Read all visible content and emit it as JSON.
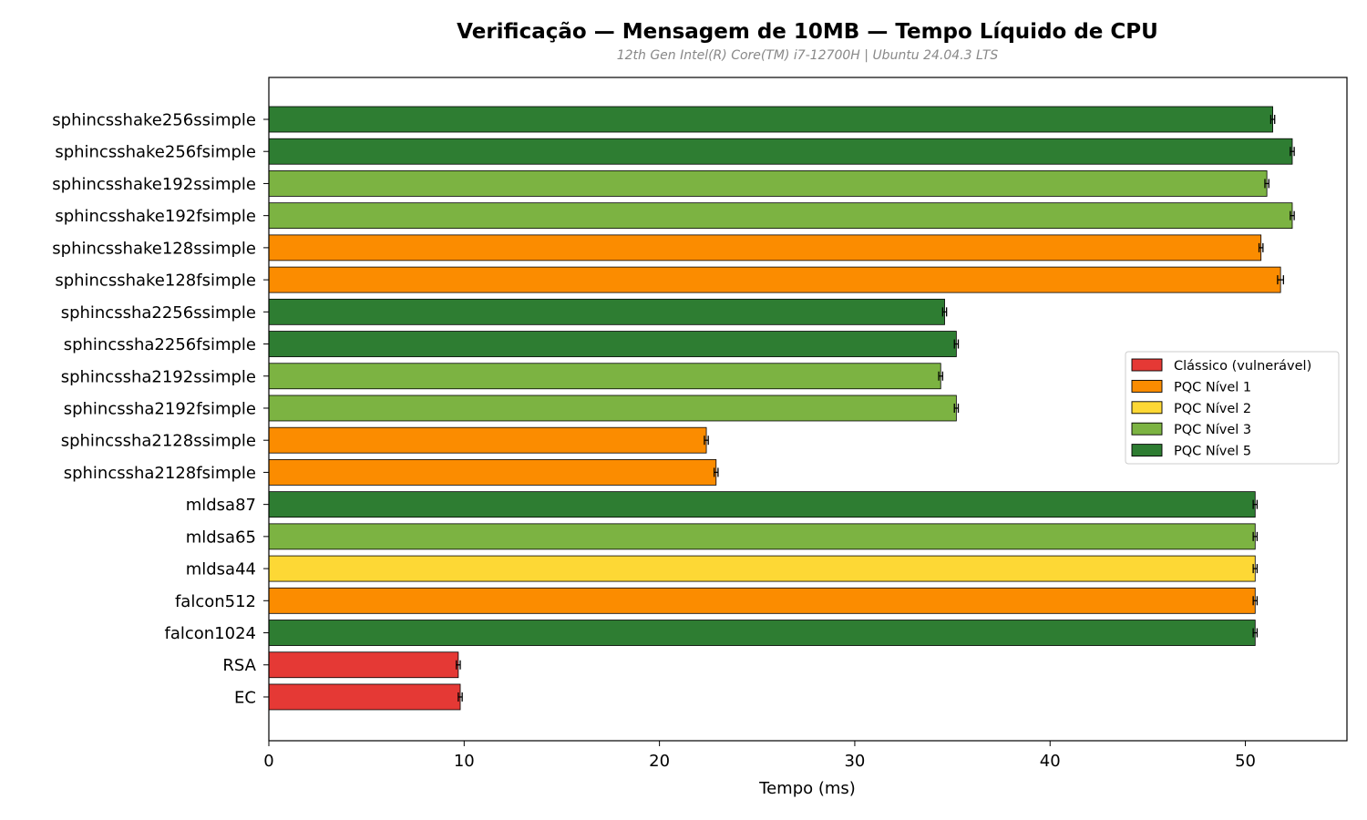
{
  "chart_data": {
    "type": "bar",
    "orientation": "horizontal",
    "title": "Verificação — Mensagem de 10MB — Tempo Líquido de CPU",
    "subtitle": "12th Gen Intel(R) Core(TM) i7-12700H | Ubuntu 24.04.3 LTS",
    "xlabel": "Tempo (ms)",
    "ylabel": "",
    "xlim": [
      0,
      55.2
    ],
    "xticks": [
      0,
      10,
      20,
      30,
      40,
      50
    ],
    "grid": false,
    "legend_position": "center-right",
    "categories": [
      "sphincsshake256ssimple",
      "sphincsshake256fsimple",
      "sphincsshake192ssimple",
      "sphincsshake192fsimple",
      "sphincsshake128ssimple",
      "sphincsshake128fsimple",
      "sphincssha2256ssimple",
      "sphincssha2256fsimple",
      "sphincssha2192ssimple",
      "sphincssha2192fsimple",
      "sphincssha2128ssimple",
      "sphincssha2128fsimple",
      "mldsa87",
      "mldsa65",
      "mldsa44",
      "falcon512",
      "falcon1024",
      "RSA",
      "EC"
    ],
    "values": [
      51.4,
      52.4,
      51.1,
      52.4,
      50.8,
      51.8,
      34.6,
      35.2,
      34.4,
      35.2,
      22.4,
      22.9,
      50.5,
      50.5,
      50.5,
      50.5,
      50.5,
      9.7,
      9.8
    ],
    "errors": [
      0.1,
      0.1,
      0.1,
      0.1,
      0.1,
      0.15,
      0.1,
      0.1,
      0.1,
      0.1,
      0.1,
      0.1,
      0.1,
      0.1,
      0.1,
      0.1,
      0.1,
      0.1,
      0.1
    ],
    "levels": [
      "PQC Nível 5",
      "PQC Nível 5",
      "PQC Nível 3",
      "PQC Nível 3",
      "PQC Nível 1",
      "PQC Nível 1",
      "PQC Nível 5",
      "PQC Nível 5",
      "PQC Nível 3",
      "PQC Nível 3",
      "PQC Nível 1",
      "PQC Nível 1",
      "PQC Nível 5",
      "PQC Nível 3",
      "PQC Nível 2",
      "PQC Nível 1",
      "PQC Nível 5",
      "Clássico (vulnerável)",
      "Clássico (vulnerável)"
    ],
    "legend": [
      {
        "name": "Clássico (vulnerável)",
        "color": "#e53935"
      },
      {
        "name": "PQC Nível 1",
        "color": "#fb8c00"
      },
      {
        "name": "PQC Nível 2",
        "color": "#fdd835"
      },
      {
        "name": "PQC Nível 3",
        "color": "#7cb342"
      },
      {
        "name": "PQC Nível 5",
        "color": "#2e7d32"
      }
    ]
  }
}
